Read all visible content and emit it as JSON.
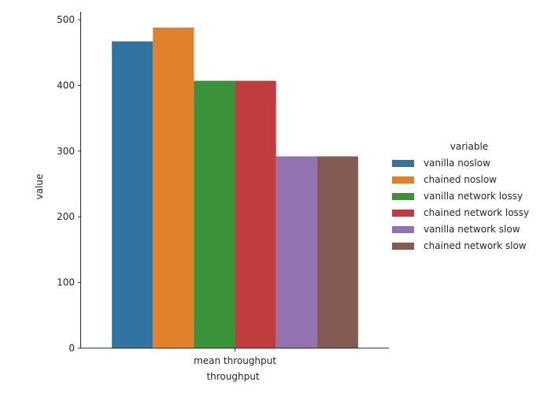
{
  "chart_data": {
    "type": "bar",
    "categories": [
      "mean throughput"
    ],
    "series": [
      {
        "name": "vanilla noslow",
        "values": [
          467
        ],
        "color": "#3274a1"
      },
      {
        "name": "chained noslow",
        "values": [
          488
        ],
        "color": "#e1812c"
      },
      {
        "name": "vanilla network lossy",
        "values": [
          407
        ],
        "color": "#3a923a"
      },
      {
        "name": "chained network lossy",
        "values": [
          407
        ],
        "color": "#c03d3e"
      },
      {
        "name": "vanilla network slow",
        "values": [
          292
        ],
        "color": "#9372b2"
      },
      {
        "name": "chained network slow",
        "values": [
          292
        ],
        "color": "#845b53"
      }
    ],
    "xlabel": "throughput",
    "ylabel": "value",
    "ylim": [
      0,
      512
    ],
    "yticks": [
      0,
      100,
      200,
      300,
      400,
      500
    ],
    "legend": {
      "title": "variable",
      "placement": "right"
    },
    "grid": false
  }
}
